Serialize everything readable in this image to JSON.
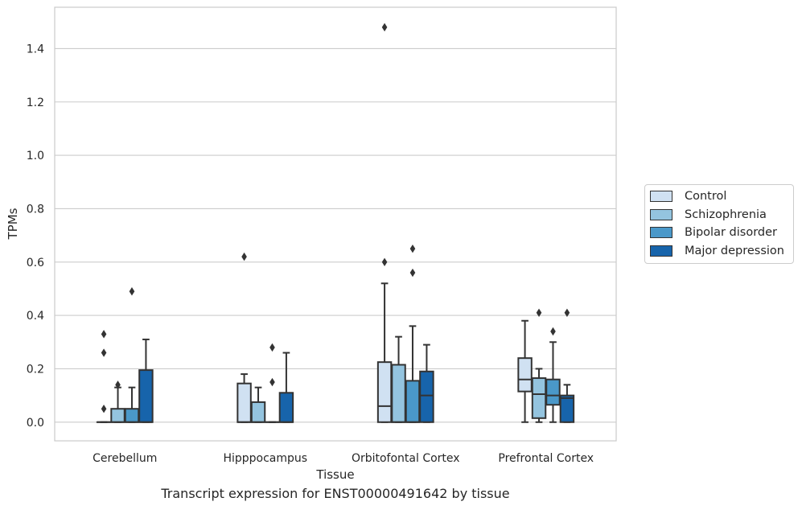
{
  "chart_data": {
    "type": "box",
    "title": "Transcript expression for ENST00000491642 by tissue",
    "xlabel": "Tissue",
    "ylabel": "TPMs",
    "ylim": [
      -0.07,
      1.555
    ],
    "yticks": [
      0.0,
      0.2,
      0.4,
      0.6,
      0.8,
      1.0,
      1.2,
      1.4
    ],
    "ytick_labels": [
      "0.0",
      "0.2",
      "0.4",
      "0.6",
      "0.8",
      "1.0",
      "1.2",
      "1.4"
    ],
    "grid": "horizontal",
    "legend_position": "right",
    "categories": [
      "Cerebellum",
      "Hipppocampus",
      "Orbitofontal Cortex",
      "Prefrontal Cortex"
    ],
    "series": [
      {
        "name": "Control",
        "color": "#d0e1f2",
        "boxes": [
          {
            "q1": 0.0,
            "median": 0.0,
            "q3": 0.0,
            "whisker_low": 0.0,
            "whisker_high": 0.0,
            "outliers": [
              0.05,
              0.26,
              0.33
            ]
          },
          {
            "q1": 0.0,
            "median": 0.0,
            "q3": 0.145,
            "whisker_low": 0.0,
            "whisker_high": 0.18,
            "outliers": [
              0.62
            ]
          },
          {
            "q1": 0.0,
            "median": 0.06,
            "q3": 0.225,
            "whisker_low": 0.0,
            "whisker_high": 0.52,
            "outliers": [
              0.6,
              1.48
            ]
          },
          {
            "q1": 0.115,
            "median": 0.16,
            "q3": 0.24,
            "whisker_low": 0.0,
            "whisker_high": 0.38,
            "outliers": []
          }
        ]
      },
      {
        "name": "Schizophrenia",
        "color": "#94c4df",
        "boxes": [
          {
            "q1": 0.0,
            "median": 0.0,
            "q3": 0.05,
            "whisker_low": 0.0,
            "whisker_high": 0.13,
            "outliers": [
              0.14
            ]
          },
          {
            "q1": 0.0,
            "median": 0.0,
            "q3": 0.075,
            "whisker_low": 0.0,
            "whisker_high": 0.13,
            "outliers": []
          },
          {
            "q1": 0.0,
            "median": 0.0,
            "q3": 0.215,
            "whisker_low": 0.0,
            "whisker_high": 0.32,
            "outliers": []
          },
          {
            "q1": 0.015,
            "median": 0.105,
            "q3": 0.165,
            "whisker_low": 0.0,
            "whisker_high": 0.2,
            "outliers": [
              0.41
            ]
          }
        ]
      },
      {
        "name": "Bipolar disorder",
        "color": "#4a98c9",
        "boxes": [
          {
            "q1": 0.0,
            "median": 0.0,
            "q3": 0.05,
            "whisker_low": 0.0,
            "whisker_high": 0.13,
            "outliers": [
              0.49
            ]
          },
          {
            "q1": 0.0,
            "median": 0.0,
            "q3": 0.0,
            "whisker_low": 0.0,
            "whisker_high": 0.0,
            "outliers": [
              0.15,
              0.28
            ]
          },
          {
            "q1": 0.0,
            "median": 0.0,
            "q3": 0.155,
            "whisker_low": 0.0,
            "whisker_high": 0.36,
            "outliers": [
              0.56,
              0.65
            ]
          },
          {
            "q1": 0.065,
            "median": 0.1,
            "q3": 0.16,
            "whisker_low": 0.0,
            "whisker_high": 0.3,
            "outliers": [
              0.34
            ]
          }
        ]
      },
      {
        "name": "Major depression",
        "color": "#1764ab",
        "boxes": [
          {
            "q1": 0.0,
            "median": 0.0,
            "q3": 0.195,
            "whisker_low": 0.0,
            "whisker_high": 0.31,
            "outliers": []
          },
          {
            "q1": 0.0,
            "median": 0.0,
            "q3": 0.11,
            "whisker_low": 0.0,
            "whisker_high": 0.26,
            "outliers": []
          },
          {
            "q1": 0.0,
            "median": 0.1,
            "q3": 0.19,
            "whisker_low": 0.0,
            "whisker_high": 0.29,
            "outliers": []
          },
          {
            "q1": 0.0,
            "median": 0.09,
            "q3": 0.1,
            "whisker_low": 0.0,
            "whisker_high": 0.14,
            "outliers": [
              0.41
            ]
          }
        ]
      }
    ]
  }
}
